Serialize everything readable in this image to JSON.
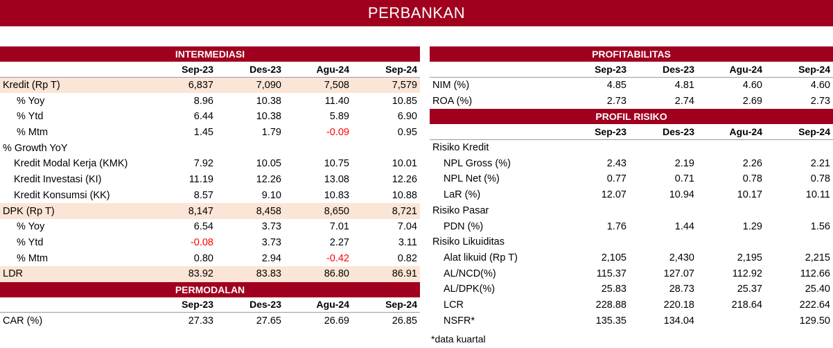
{
  "title": "PERBANKAN",
  "periods": [
    "Sep-23",
    "Des-23",
    "Agu-24",
    "Sep-24"
  ],
  "intermediasi": {
    "title": "INTERMEDIASI",
    "rows": [
      {
        "label": "Kredit (Rp T)",
        "values": [
          "6,837",
          "7,090",
          "7,508",
          "7,579"
        ],
        "style": "shade",
        "indent": 0
      },
      {
        "label": "% Yoy",
        "values": [
          "8.96",
          "10.38",
          "11.40",
          "10.85"
        ],
        "indent": 1
      },
      {
        "label": "% Ytd",
        "values": [
          "6.44",
          "10.38",
          "5.89",
          "6.90"
        ],
        "indent": 1
      },
      {
        "label": "% Mtm",
        "values": [
          "1.45",
          "1.79",
          "-0.09",
          "0.95"
        ],
        "indent": 1
      },
      {
        "label": "% Growth YoY",
        "values": [
          "",
          "",
          "",
          ""
        ],
        "indent": 0
      },
      {
        "label": "Kredit Modal Kerja (KMK)",
        "values": [
          "7.92",
          "10.05",
          "10.75",
          "10.01"
        ],
        "indent": 2
      },
      {
        "label": "Kredit Investasi (KI)",
        "values": [
          "11.19",
          "12.26",
          "13.08",
          "12.26"
        ],
        "indent": 2
      },
      {
        "label": "Kredit Konsumsi (KK)",
        "values": [
          "8.57",
          "9.10",
          "10.83",
          "10.88"
        ],
        "indent": 2
      },
      {
        "label": "DPK (Rp T)",
        "values": [
          "8,147",
          "8,458",
          "8,650",
          "8,721"
        ],
        "style": "shade",
        "indent": 0
      },
      {
        "label": "% Yoy",
        "values": [
          "6.54",
          "3.73",
          "7.01",
          "7.04"
        ],
        "indent": 1
      },
      {
        "label": "% Ytd",
        "values": [
          "-0.08",
          "3.73",
          "2.27",
          "3.11"
        ],
        "indent": 1
      },
      {
        "label": "% Mtm",
        "values": [
          "0.80",
          "2.94",
          "-0.42",
          "0.82"
        ],
        "indent": 1
      },
      {
        "label": "LDR",
        "values": [
          "83.92",
          "83.83",
          "86.80",
          "86.91"
        ],
        "style": "shade",
        "indent": 0
      }
    ]
  },
  "permodalan": {
    "title": "PERMODALAN",
    "rows": [
      {
        "label": "CAR (%)",
        "values": [
          "27.33",
          "27.65",
          "26.69",
          "26.85"
        ],
        "indent": 0
      }
    ]
  },
  "profitabilitas": {
    "title": "PROFITABILITAS",
    "rows": [
      {
        "label": "NIM (%)",
        "values": [
          "4.85",
          "4.81",
          "4.60",
          "4.60"
        ],
        "indent": 0
      },
      {
        "label": "ROA (%)",
        "values": [
          "2.73",
          "2.74",
          "2.69",
          "2.73"
        ],
        "indent": 0
      }
    ]
  },
  "profil_risiko": {
    "title": "PROFIL RISIKO",
    "rows": [
      {
        "label": "Risiko Kredit",
        "values": [
          "",
          "",
          "",
          ""
        ],
        "indent": 0
      },
      {
        "label": "NPL Gross (%)",
        "values": [
          "2.43",
          "2.19",
          "2.26",
          "2.21"
        ],
        "indent": 2
      },
      {
        "label": "NPL Net (%)",
        "values": [
          "0.77",
          "0.71",
          "0.78",
          "0.78"
        ],
        "indent": 2
      },
      {
        "label": "LaR (%)",
        "values": [
          "12.07",
          "10.94",
          "10.17",
          "10.11"
        ],
        "indent": 2
      },
      {
        "label": "Risiko Pasar",
        "values": [
          "",
          "",
          "",
          ""
        ],
        "indent": 0
      },
      {
        "label": "PDN (%)",
        "values": [
          "1.76",
          "1.44",
          "1.29",
          "1.56"
        ],
        "indent": 2
      },
      {
        "label": "Risiko Likuiditas",
        "values": [
          "",
          "",
          "",
          ""
        ],
        "indent": 0
      },
      {
        "label": "Alat likuid (Rp T)",
        "values": [
          "2,105",
          "2,430",
          "2,195",
          "2,215"
        ],
        "indent": 2
      },
      {
        "label": "AL/NCD(%)",
        "values": [
          "115.37",
          "127.07",
          "112.92",
          "112.66"
        ],
        "indent": 2
      },
      {
        "label": "AL/DPK(%)",
        "values": [
          "25.83",
          "28.73",
          "25.37",
          "25.40"
        ],
        "indent": 2
      },
      {
        "label": "LCR",
        "values": [
          "228.88",
          "220.18",
          "218.64",
          "222.64"
        ],
        "indent": 2
      },
      {
        "label": "NSFR*",
        "values": [
          "135.35",
          "134.04",
          "",
          "129.50"
        ],
        "indent": 2
      }
    ]
  },
  "footnote": "*data kuartal",
  "colors": {
    "accent": "#a0001e",
    "shade": "#fbe5d6",
    "negative": "#ff0000"
  }
}
